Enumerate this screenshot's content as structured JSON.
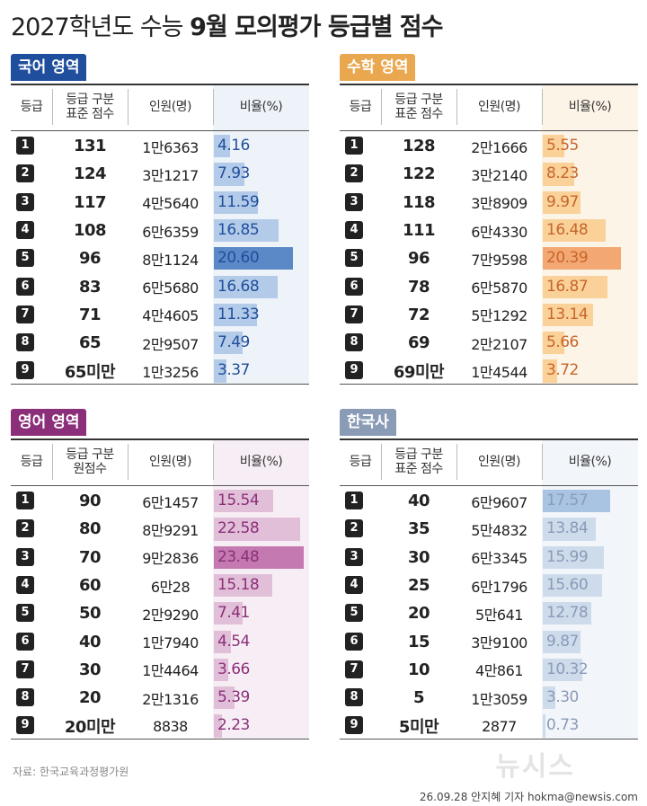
{
  "title": [
    "2027학년도 수능",
    "9월 모의평가 등급별 점수"
  ],
  "panels": [
    {
      "title": "국어 영역",
      "header": [
        "등급",
        "등급 구분\n표준 점수",
        "인원(명)",
        "비율(%)"
      ],
      "rows": [
        [
          "1",
          "131",
          "1만6363",
          "4.16"
        ],
        [
          "2",
          "124",
          "3만1217",
          "7.93"
        ],
        [
          "3",
          "117",
          "4만5640",
          "11.59"
        ],
        [
          "4",
          "108",
          "6만6359",
          "16.85"
        ],
        [
          "5",
          "96",
          "8만1124",
          "20.60"
        ],
        [
          "6",
          "83",
          "6만5680",
          "16.68"
        ],
        [
          "7",
          "71",
          "4만4605",
          "11.33"
        ],
        [
          "8",
          "65",
          "2만9507",
          "7.49"
        ],
        [
          "9",
          "65미만",
          "1만3256",
          "3.37"
        ]
      ]
    },
    {
      "title": "수학 영역",
      "header": [
        "등급",
        "등급 구분\n표준 점수",
        "인원(명)",
        "비율(%)"
      ],
      "rows": [
        [
          "1",
          "128",
          "2만1666",
          "5.55"
        ],
        [
          "2",
          "122",
          "3만2140",
          "8.23"
        ],
        [
          "3",
          "118",
          "3만8909",
          "9.97"
        ],
        [
          "4",
          "111",
          "6만4330",
          "16.48"
        ],
        [
          "5",
          "96",
          "7만9598",
          "20.39"
        ],
        [
          "6",
          "78",
          "6만5870",
          "16.87"
        ],
        [
          "7",
          "72",
          "5만1292",
          "13.14"
        ],
        [
          "8",
          "69",
          "2만2107",
          "5.66"
        ],
        [
          "9",
          "69미만",
          "1만4544",
          "3.72"
        ]
      ]
    },
    {
      "title": "영어 영역",
      "header": [
        "등급",
        "등급 구분\n원점수",
        "인원(명)",
        "비율(%)"
      ],
      "rows": [
        [
          "1",
          "90",
          "6만1457",
          "15.54"
        ],
        [
          "2",
          "80",
          "8만9291",
          "22.58"
        ],
        [
          "3",
          "70",
          "9만2836",
          "23.48"
        ],
        [
          "4",
          "60",
          "6만28",
          "15.18"
        ],
        [
          "5",
          "50",
          "2만9290",
          "7.41"
        ],
        [
          "6",
          "40",
          "1만7940",
          "4.54"
        ],
        [
          "7",
          "30",
          "1만4464",
          "3.66"
        ],
        [
          "8",
          "20",
          "2만1316",
          "5.39"
        ],
        [
          "9",
          "20미만",
          "8838",
          "2.23"
        ]
      ]
    },
    {
      "title": "한국사",
      "header": [
        "등급",
        "등급 구분\n표준 점수",
        "인원(명)",
        "비율(%)"
      ],
      "rows": [
        [
          "1",
          "40",
          "6만9607",
          "17.57"
        ],
        [
          "2",
          "35",
          "5만4832",
          "13.84"
        ],
        [
          "3",
          "30",
          "6만3345",
          "15.99"
        ],
        [
          "4",
          "25",
          "6만1796",
          "15.60"
        ],
        [
          "5",
          "20",
          "5만641",
          "12.78"
        ],
        [
          "6",
          "15",
          "3만9100",
          "9.87"
        ],
        [
          "7",
          "10",
          "4만861",
          "10.32"
        ],
        [
          "8",
          "5",
          "1만3059",
          "3.30"
        ],
        [
          "9",
          "5미만",
          "2877",
          "0.73"
        ]
      ]
    }
  ],
  "source": "자료: 한국교육과정평가원",
  "byline": "26.09.28 안지혜 기자 hokma@newsis.com",
  "logo": "뉴시스"
}
